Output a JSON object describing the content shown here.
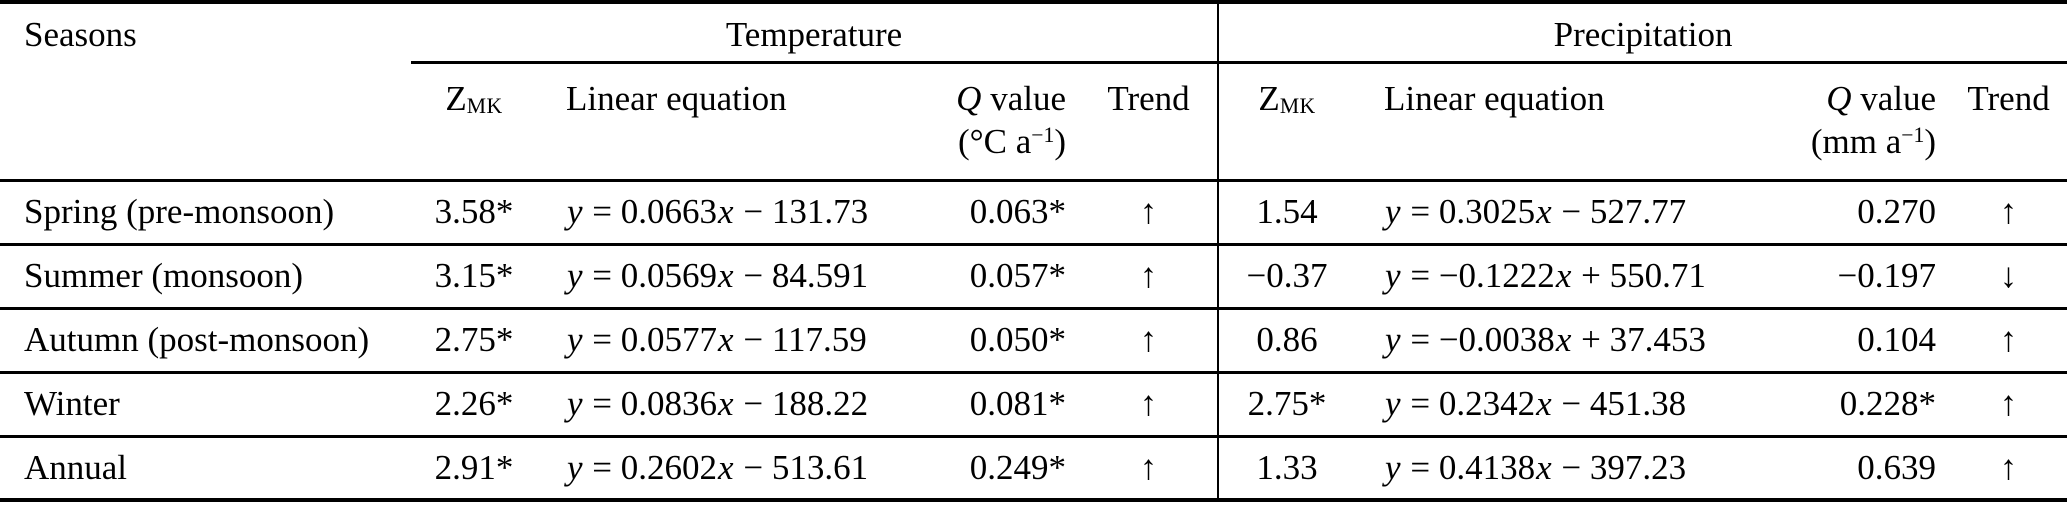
{
  "header": {
    "seasons": "Seasons",
    "groups": {
      "temperature": "Temperature",
      "precipitation": "Precipitation"
    },
    "zmk": {
      "base": "Z",
      "sub": "MK"
    },
    "linear_equation": "Linear equation",
    "q_value": {
      "symbol": "Q",
      "rest": " value"
    },
    "unit_temperature": {
      "open": "(°C a",
      "exponent": "−1",
      "close": ")"
    },
    "unit_precipitation": {
      "open": "(mm a",
      "exponent": "−1",
      "close": ")"
    },
    "trend": "Trend"
  },
  "rows": [
    {
      "season": "Spring (pre-monsoon)",
      "temp": {
        "zmk": "3.58*",
        "equation": "y = 0.0663x − 131.73",
        "q": "0.063*",
        "trend": "↑"
      },
      "precip": {
        "zmk": "1.54",
        "equation": "y = 0.3025x − 527.77",
        "q": "0.270",
        "trend": "↑"
      }
    },
    {
      "season": "Summer (monsoon)",
      "temp": {
        "zmk": "3.15*",
        "equation": "y = 0.0569x − 84.591",
        "q": "0.057*",
        "trend": "↑"
      },
      "precip": {
        "zmk": "−0.37",
        "equation": "y = −0.1222x + 550.71",
        "q": "−0.197",
        "trend": "↓"
      }
    },
    {
      "season": "Autumn (post-monsoon)",
      "temp": {
        "zmk": "2.75*",
        "equation": "y = 0.0577x − 117.59",
        "q": "0.050*",
        "trend": "↑"
      },
      "precip": {
        "zmk": "0.86",
        "equation": "y = −0.0038x + 37.453",
        "q": "0.104",
        "trend": "↑"
      }
    },
    {
      "season": "Winter",
      "temp": {
        "zmk": "2.26*",
        "equation": "y = 0.0836x − 188.22",
        "q": "0.081*",
        "trend": "↑"
      },
      "precip": {
        "zmk": "2.75*",
        "equation": "y = 0.2342x − 451.38",
        "q": "0.228*",
        "trend": "↑"
      }
    },
    {
      "season": "Annual",
      "temp": {
        "zmk": "2.91*",
        "equation": "y = 0.2602x − 513.61",
        "q": "0.249*",
        "trend": "↑"
      },
      "precip": {
        "zmk": "1.33",
        "equation": "y = 0.4138x − 397.23",
        "q": "0.639",
        "trend": "↑"
      }
    }
  ],
  "chart_data": {
    "type": "table",
    "title": "Seasonal trend statistics for temperature and precipitation",
    "columns": [
      "Seasons",
      "Temperature Z_MK",
      "Temperature linear equation",
      "Temperature Q value (°C a−1)",
      "Temperature trend",
      "Precipitation Z_MK",
      "Precipitation linear equation",
      "Precipitation Q value (mm a−1)",
      "Precipitation trend"
    ],
    "rows": [
      [
        "Spring (pre-monsoon)",
        "3.58*",
        "y = 0.0663x − 131.73",
        "0.063*",
        "↑",
        "1.54",
        "y = 0.3025x − 527.77",
        "0.270",
        "↑"
      ],
      [
        "Summer (monsoon)",
        "3.15*",
        "y = 0.0569x − 84.591",
        "0.057*",
        "↑",
        "−0.37",
        "y = −0.1222x + 550.71",
        "−0.197",
        "↓"
      ],
      [
        "Autumn (post-monsoon)",
        "2.75*",
        "y = 0.0577x − 117.59",
        "0.050*",
        "↑",
        "0.86",
        "y = −0.0038x + 37.453",
        "0.104",
        "↑"
      ],
      [
        "Winter",
        "2.26*",
        "y = 0.0836x − 188.22",
        "0.081*",
        "↑",
        "2.75*",
        "y = 0.2342x − 451.38",
        "0.228*",
        "↑"
      ],
      [
        "Annual",
        "2.91*",
        "y = 0.2602x − 513.61",
        "0.249*",
        "↑",
        "1.33",
        "y = 0.4138x − 397.23",
        "0.639",
        "↑"
      ]
    ]
  }
}
